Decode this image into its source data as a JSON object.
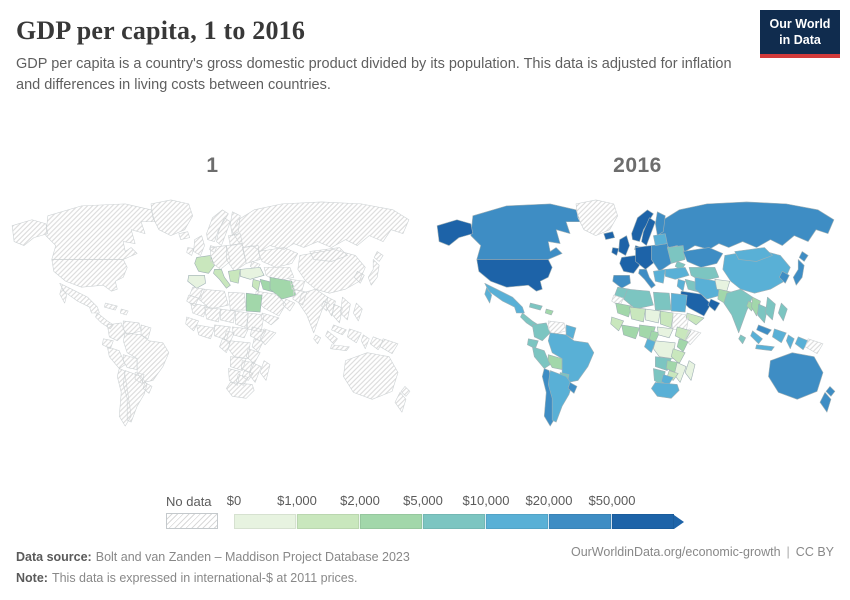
{
  "header": {
    "title": "GDP per capita, 1 to 2016",
    "subtitle": "GDP per capita is a country's gross domestic product divided by its population. This data is adjusted for inflation and differences in living costs between countries.",
    "logo": {
      "line1": "Our World",
      "line2": "in Data",
      "bg_color": "#102c4e",
      "accent_color": "#d23a3a"
    }
  },
  "chart_data": {
    "type": "choropleth",
    "title": "GDP per capita, 1 to 2016",
    "unit": "international-$ at 2011 prices",
    "no_data": {
      "label": "No data",
      "hatch_color": "#d9d9d9"
    },
    "legend_bins": [
      {
        "key": "b0",
        "label": "$0",
        "color": "#e7f3e0"
      },
      {
        "key": "b1k",
        "label": "$1,000",
        "color": "#c9e7bd"
      },
      {
        "key": "b2k",
        "label": "$2,000",
        "color": "#a2d7aa"
      },
      {
        "key": "b5k",
        "label": "$5,000",
        "color": "#7cc5c1"
      },
      {
        "key": "b10k",
        "label": "$10,000",
        "color": "#59b0d6"
      },
      {
        "key": "b20k",
        "label": "$20,000",
        "color": "#3e8dc4"
      },
      {
        "key": "b50k",
        "label": "$50,000",
        "color": "#1d63a8"
      }
    ],
    "maps": [
      {
        "label": "1",
        "values": {
          "iberia": "b0",
          "france": "b1k",
          "italy": "b1k",
          "balkans": "b1k",
          "turkey": "b0",
          "levant": "b1k",
          "egypt": "b2k",
          "iraq": "b2k",
          "iran": "b2k"
        }
      },
      {
        "label": "2016",
        "values": {
          "russia": "b20k",
          "canada": "b20k",
          "greenland": "nodata",
          "alaska": "b50k",
          "usa": "b50k",
          "mexico": "b10k",
          "central-america": "b5k",
          "cuba": "b5k",
          "hispaniola": "b2k",
          "colombia": "b5k",
          "venezuela": "nodata",
          "guyanas": "b10k",
          "ecuador": "b5k",
          "peru": "b5k",
          "bolivia": "b2k",
          "brazil": "b10k",
          "paraguay": "b5k",
          "chile": "b20k",
          "argentina": "b10k",
          "uruguay": "b20k",
          "iceland": "b50k",
          "ireland": "b50k",
          "uk": "b50k",
          "norway": "b50k",
          "sweden": "b50k",
          "finland": "b20k",
          "denmark": "b50k",
          "france": "b50k",
          "iberia": "b20k",
          "central-europe": "b50k",
          "italy": "b20k",
          "eastern-europe": "b20k",
          "balkans": "b10k",
          "belarus-baltics": "b10k",
          "ukraine": "b5k",
          "kazakhstan": "b20k",
          "central-asia": "b5k",
          "caucasus": "b5k",
          "turkey": "b10k",
          "levant": "b10k",
          "iraq": "b5k",
          "iran": "b10k",
          "saudi": "b50k",
          "gulf": "b50k",
          "yemen": "b1k",
          "afghanistan": "b0",
          "pakistan": "b2k",
          "india": "b5k",
          "bangladesh": "b2k",
          "sri-lanka": "b5k",
          "china": "b10k",
          "mongolia": "b10k",
          "korea": "b20k",
          "japan": "b20k",
          "myanmar": "b2k",
          "thailand": "b5k",
          "vietnam": "b5k",
          "malaysia": "b20k",
          "philippines": "b5k",
          "indonesia": "b10k",
          "new-guinea-west": "b10k",
          "png": "nodata",
          "australia": "b20k",
          "new-zealand": "b20k",
          "morocco": "b5k",
          "western-sahara": "nodata",
          "algeria": "b5k",
          "libya": "b5k",
          "egypt": "b10k",
          "mauritania": "b2k",
          "mali": "b1k",
          "niger": "b0",
          "chad": "b1k",
          "sudan": "nodata",
          "senegal-guinea": "b1k",
          "west-africa": "b2k",
          "nigeria": "b2k",
          "cameroon": "b2k",
          "car": "b0",
          "ethiopia": "b1k",
          "somalia": "nodata",
          "drc": "b0",
          "gabon-congo": "b10k",
          "kenya": "b2k",
          "tanzania": "b1k",
          "angola": "b5k",
          "zambia": "b2k",
          "mozambique": "b0",
          "zimbabwe": "b1k",
          "namibia": "b5k",
          "botswana": "b10k",
          "south-africa": "b10k",
          "madagascar": "b0"
        }
      }
    ]
  },
  "footer": {
    "source_label": "Data source:",
    "source_text": "Bolt and van Zanden – Maddison Project Database 2023",
    "note_label": "Note:",
    "note_text": "This data is expressed in international-$ at 2011 prices.",
    "link": "OurWorldinData.org/economic-growth",
    "divider": "|",
    "license": "CC BY"
  }
}
